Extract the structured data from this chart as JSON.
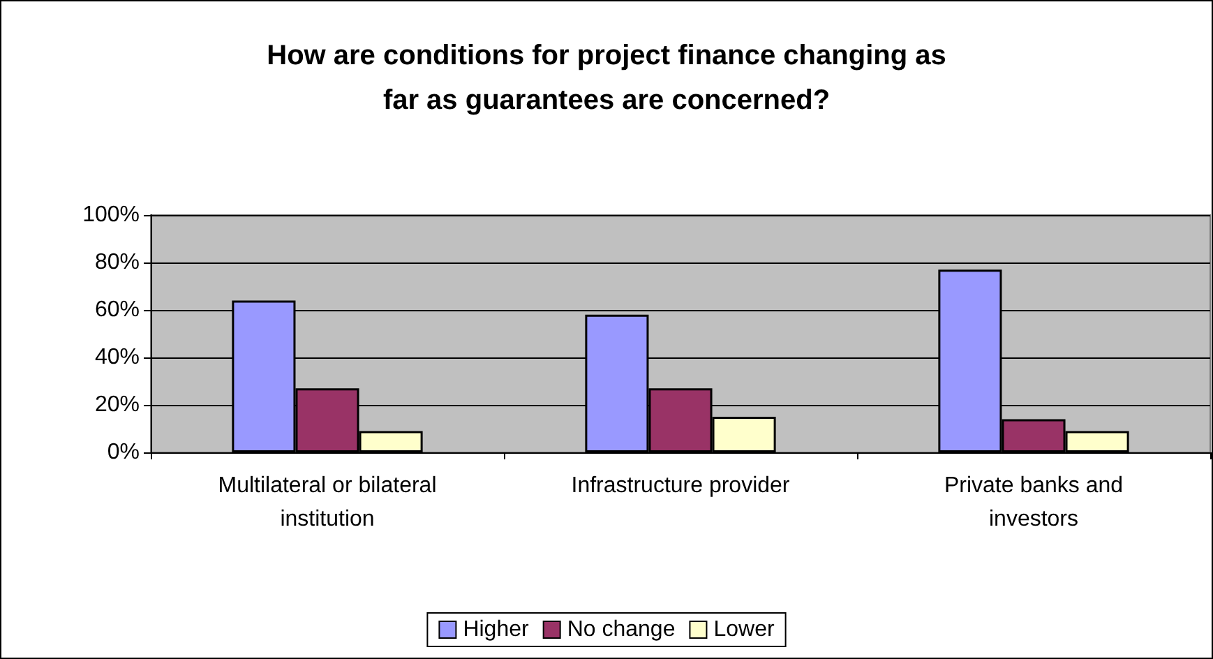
{
  "chart_data": {
    "type": "bar",
    "title": "How are conditions for project finance changing as\nfar as guarantees are concerned?",
    "categories": [
      "Multilateral or bilateral\ninstitution",
      "Infrastructure provider",
      "Private banks and\ninvestors"
    ],
    "series": [
      {
        "name": "Higher",
        "color": "#9999ff",
        "values": [
          64,
          58,
          77
        ]
      },
      {
        "name": "No change",
        "color": "#993366",
        "values": [
          27,
          27,
          14
        ]
      },
      {
        "name": "Lower",
        "color": "#ffffcc",
        "values": [
          9,
          15,
          9
        ]
      }
    ],
    "ylim": [
      0,
      100
    ],
    "yticks": [
      {
        "value": 0,
        "label": "0%"
      },
      {
        "value": 20,
        "label": "20%"
      },
      {
        "value": 40,
        "label": "40%"
      },
      {
        "value": 60,
        "label": "60%"
      },
      {
        "value": 80,
        "label": "80%"
      },
      {
        "value": 100,
        "label": "100%"
      }
    ],
    "grid": "y",
    "legend": "bottom"
  }
}
